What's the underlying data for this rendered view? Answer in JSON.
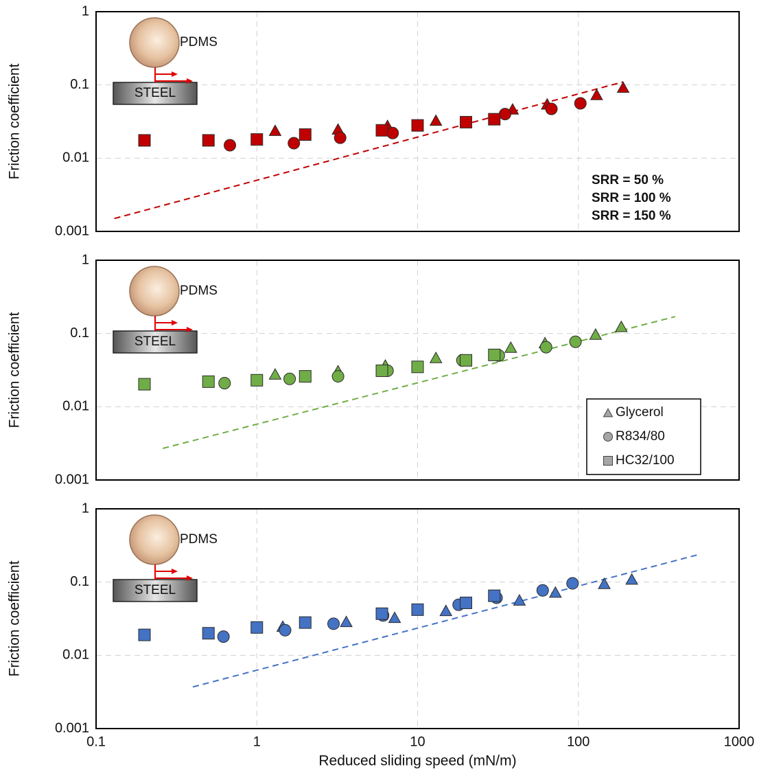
{
  "chart_data": [
    {
      "type": "scatter",
      "xscale": "log",
      "yscale": "log",
      "grid": true,
      "ylabel": "Friction coefficient",
      "xlim": [
        0.1,
        1000
      ],
      "xticks": [
        0.1,
        1,
        10,
        100,
        1000
      ],
      "ylim": [
        0.001,
        1
      ],
      "yticks": [
        0.001,
        0.01,
        0.1,
        1
      ],
      "inset": {
        "ball_label": "PDMS",
        "block_label": "STEEL"
      },
      "annotations": [
        {
          "text": "SRR = 50 %",
          "color": "#c00000"
        },
        {
          "text": "SRR = 100 %",
          "color": "#70ad47"
        },
        {
          "text": "SRR = 150 %",
          "color": "#4472c4"
        }
      ],
      "series": [
        {
          "marker": "triangle",
          "color": "#c00000",
          "x": [
            1.3,
            3.2,
            6.5,
            13,
            20,
            39,
            64,
            130,
            190
          ],
          "values": [
            0.024,
            0.025,
            0.028,
            0.033,
            0.031,
            0.047,
            0.055,
            0.074,
            0.093
          ]
        },
        {
          "marker": "circle",
          "color": "#c00000",
          "x": [
            0.68,
            1.7,
            3.3,
            7.0,
            35,
            68,
            103
          ],
          "values": [
            0.015,
            0.016,
            0.019,
            0.022,
            0.04,
            0.047,
            0.056
          ]
        },
        {
          "marker": "square",
          "color": "#c00000",
          "x": [
            0.2,
            0.5,
            1.0,
            2.0,
            6.0,
            10,
            20,
            30
          ],
          "values": [
            0.0175,
            0.0175,
            0.018,
            0.021,
            0.024,
            0.028,
            0.031,
            0.034
          ]
        }
      ],
      "fit": {
        "color": "#c00000",
        "x": [
          0.13,
          190
        ],
        "y": [
          0.0015,
          0.11
        ]
      }
    },
    {
      "type": "scatter",
      "xscale": "log",
      "yscale": "log",
      "grid": true,
      "ylabel": "Friction coefficient",
      "xlim": [
        0.1,
        1000
      ],
      "xticks": [
        0.1,
        1,
        10,
        100,
        1000
      ],
      "ylim": [
        0.001,
        1
      ],
      "yticks": [
        0.001,
        0.01,
        0.1,
        1
      ],
      "inset": {
        "ball_label": "PDMS",
        "block_label": "STEEL"
      },
      "legend": "lower right",
      "legend_color": "#a6a6a6",
      "series": [
        {
          "name": "Glycerol",
          "marker": "triangle",
          "color": "#70ad47",
          "x": [
            1.3,
            3.2,
            6.3,
            13,
            38,
            62,
            128,
            185
          ],
          "values": [
            0.028,
            0.031,
            0.037,
            0.047,
            0.065,
            0.075,
            0.098,
            0.125
          ]
        },
        {
          "name": "R834/80",
          "marker": "circle",
          "color": "#70ad47",
          "x": [
            0.63,
            1.6,
            3.2,
            6.5,
            19,
            32,
            63,
            96
          ],
          "values": [
            0.021,
            0.024,
            0.026,
            0.031,
            0.043,
            0.05,
            0.065,
            0.077
          ]
        },
        {
          "name": "HC32/100",
          "marker": "square",
          "color": "#70ad47",
          "x": [
            0.2,
            0.5,
            1.0,
            2.0,
            6.0,
            10,
            20,
            30
          ],
          "values": [
            0.0203,
            0.022,
            0.023,
            0.026,
            0.031,
            0.035,
            0.043,
            0.051
          ]
        }
      ],
      "fit": {
        "color": "#70ad47",
        "x": [
          0.26,
          400
        ],
        "y": [
          0.0027,
          0.17
        ]
      }
    },
    {
      "type": "scatter",
      "xscale": "log",
      "yscale": "log",
      "grid": true,
      "ylabel": "Friction coefficient",
      "xlabel": "Reduced sliding speed (mN/m)",
      "xlim": [
        0.1,
        1000
      ],
      "xticks": [
        0.1,
        1,
        10,
        100,
        1000
      ],
      "ylim": [
        0.001,
        1
      ],
      "yticks": [
        0.001,
        0.01,
        0.1,
        1
      ],
      "inset": {
        "ball_label": "PDMS",
        "block_label": "STEEL"
      },
      "series": [
        {
          "marker": "triangle",
          "color": "#4472c4",
          "x": [
            1.45,
            3.6,
            7.2,
            15,
            43,
            72,
            145,
            215
          ],
          "values": [
            0.025,
            0.029,
            0.033,
            0.041,
            0.057,
            0.073,
            0.096,
            0.11
          ]
        },
        {
          "marker": "circle",
          "color": "#4472c4",
          "x": [
            0.62,
            1.5,
            3.0,
            6.1,
            18,
            31,
            60,
            92
          ],
          "values": [
            0.018,
            0.022,
            0.027,
            0.035,
            0.049,
            0.061,
            0.077,
            0.096
          ]
        },
        {
          "marker": "square",
          "color": "#4472c4",
          "x": [
            0.2,
            0.5,
            1.0,
            2.0,
            6.0,
            10,
            20,
            30
          ],
          "values": [
            0.019,
            0.02,
            0.024,
            0.028,
            0.037,
            0.042,
            0.052,
            0.065
          ]
        }
      ],
      "fit": {
        "color": "#4472c4",
        "x": [
          0.4,
          570
        ],
        "y": [
          0.0037,
          0.24
        ]
      }
    }
  ]
}
